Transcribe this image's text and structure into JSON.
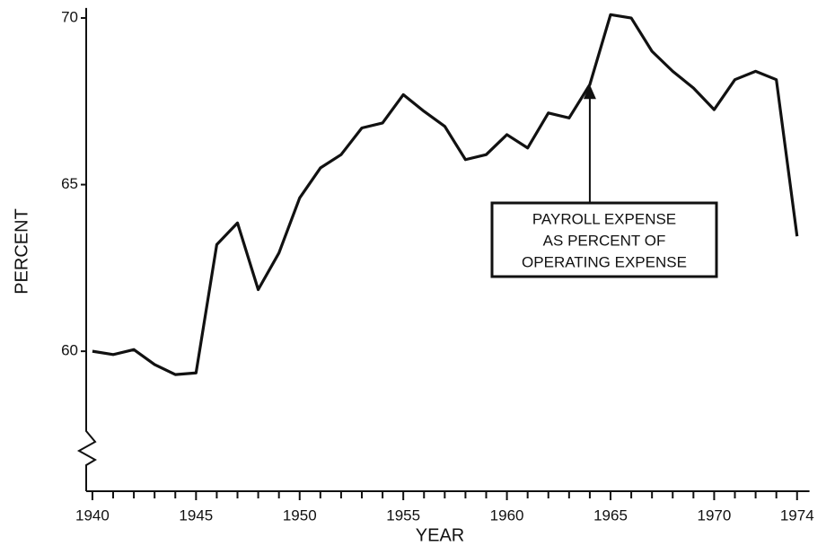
{
  "chart_data": {
    "type": "line",
    "x_label": "YEAR",
    "y_label": "PERCENT",
    "annotation": [
      "PAYROLL EXPENSE",
      "AS PERCENT OF",
      "OPERATING EXPENSE"
    ],
    "annotation_x": 1964,
    "annotation_y": 68.0,
    "x": [
      1940,
      1941,
      1942,
      1943,
      1944,
      1945,
      1946,
      1947,
      1948,
      1949,
      1950,
      1951,
      1952,
      1953,
      1954,
      1955,
      1956,
      1957,
      1958,
      1959,
      1960,
      1961,
      1962,
      1963,
      1964,
      1965,
      1966,
      1967,
      1968,
      1969,
      1970,
      1971,
      1972,
      1973,
      1974
    ],
    "series": [
      {
        "color": "#111111",
        "values": [
          60.0,
          59.9,
          60.05,
          59.6,
          59.3,
          59.35,
          63.2,
          63.85,
          61.85,
          62.95,
          64.6,
          65.5,
          65.9,
          66.7,
          66.85,
          67.7,
          67.2,
          66.75,
          65.75,
          65.9,
          66.5,
          66.1,
          67.15,
          67.0,
          68.0,
          70.1,
          70.0,
          69.0,
          68.4,
          67.9,
          67.25,
          68.15,
          68.4,
          68.15,
          63.45
        ]
      }
    ],
    "xlim": [
      1939.7,
      1974.6
    ],
    "ylim": [
      55.8,
      70.3
    ],
    "xticks": [
      1940,
      1945,
      1950,
      1955,
      1960,
      1965,
      1970,
      1974
    ],
    "xminorticks": [
      1941,
      1942,
      1943,
      1944,
      1946,
      1947,
      1948,
      1949,
      1951,
      1952,
      1953,
      1954,
      1956,
      1957,
      1958,
      1959,
      1961,
      1962,
      1963,
      1964,
      1966,
      1967,
      1968,
      1969,
      1971,
      1972,
      1973
    ],
    "yticks": [
      60,
      65,
      70
    ],
    "axis_break": true
  }
}
